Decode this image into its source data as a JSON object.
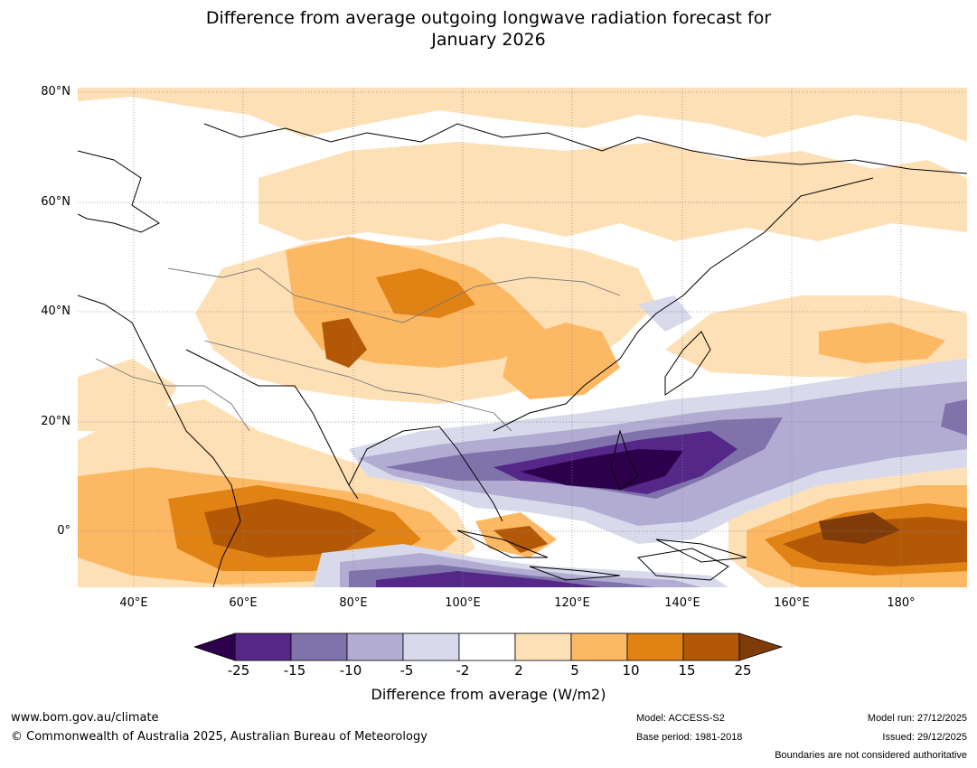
{
  "title_line1": "Difference from average outgoing longwave radiation forecast for",
  "title_line2": "January 2026",
  "map": {
    "lat_labels": [
      "80°N",
      "60°N",
      "40°N",
      "20°N",
      "0°"
    ],
    "lon_labels": [
      "40°E",
      "60°E",
      "80°E",
      "100°E",
      "120°E",
      "140°E",
      "160°E",
      "180°"
    ],
    "lat_range": [
      -10,
      81
    ],
    "lon_range": [
      30,
      192
    ]
  },
  "colorbar": {
    "ticks": [
      "-25",
      "-15",
      "-10",
      "-5",
      "-2",
      "2",
      "5",
      "10",
      "15",
      "25"
    ],
    "colors": [
      "#2d004b",
      "#542788",
      "#8073ac",
      "#b2abd2",
      "#d8daeb",
      "#ffffff",
      "#fee0b6",
      "#fdb863",
      "#e08214",
      "#b35806",
      "#7f3b08"
    ],
    "label": "Difference from average (W/m2)"
  },
  "footer": {
    "url": "www.bom.gov.au/climate",
    "copyright": "© Commonwealth of Australia 2025, Australian Bureau of Meteorology",
    "model": "Model: ACCESS-S2",
    "base_period": "Base period: 1981-2018",
    "model_run": "Model run: 27/12/2025",
    "issued": "Issued: 29/12/2025",
    "disclaimer": "Boundaries are not considered authoritative"
  }
}
